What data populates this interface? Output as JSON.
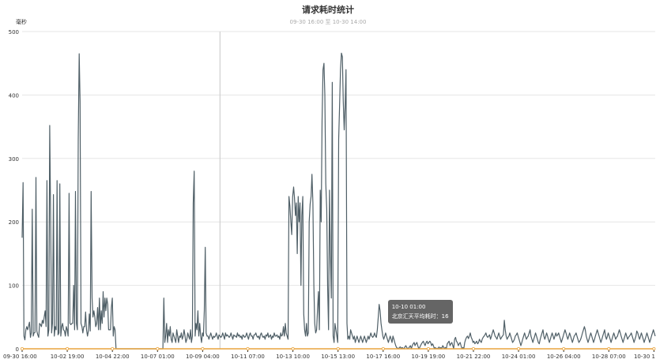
{
  "chart_data": {
    "type": "line",
    "title": "请求耗时统计",
    "subtitle": "09-30 16:00 至 10-30 14:00",
    "ylabel": "毫秒",
    "ylim": [
      0,
      500
    ],
    "y_ticks": [
      "0",
      "100",
      "200",
      "300",
      "400",
      "500"
    ],
    "x_ticks": [
      "09-30 16:00",
      "10-02 19:00",
      "10-04 22:00",
      "10-07 01:00",
      "10-09 04:00",
      "10-11 07:00",
      "10-13 10:00",
      "10-15 13:00",
      "10-17 16:00",
      "10-19 19:00",
      "10-21 22:00",
      "10-24 01:00",
      "10-26 04:00",
      "10-28 07:00",
      "10-30 1"
    ],
    "grid": true,
    "colors": {
      "series": "#4f5f67",
      "baseline": "#e8a33d",
      "grid": "#e6e6e6",
      "axis": "#333333"
    },
    "series": [
      {
        "name": "北京汇天平均耗时",
        "x_range": [
          "09-30 16:00",
          "10-30 14:00"
        ],
        "values": [
          175,
          262,
          20,
          14,
          30,
          35,
          30,
          36,
          42,
          18,
          25,
          220,
          20,
          25,
          26,
          270,
          28,
          22,
          18,
          40,
          38,
          35,
          45,
          40,
          50,
          60,
          35,
          265,
          20,
          30,
          352,
          200,
          25,
          40,
          243,
          20,
          35,
          30,
          265,
          22,
          25,
          260,
          20,
          35,
          40,
          30,
          28,
          20,
          35,
          30,
          20,
          245,
          40,
          38,
          40,
          40,
          100,
          30,
          248,
          40,
          30,
          330,
          465,
          390,
          40,
          35,
          25,
          35,
          35,
          58,
          30,
          20,
          28,
          55,
          28,
          248,
          80,
          50,
          60,
          50,
          35,
          40,
          65,
          30,
          80,
          30,
          60,
          40,
          90,
          50,
          80,
          60,
          80,
          70,
          30,
          30,
          30,
          65,
          80,
          20,
          35,
          30,
          0,
          0,
          0,
          0,
          0,
          0,
          0,
          0,
          0,
          0,
          0,
          0,
          0,
          0,
          0,
          0,
          0,
          0,
          0,
          0,
          0,
          0,
          0,
          0,
          0,
          0,
          0,
          0,
          0,
          0,
          0,
          0,
          0,
          0,
          0,
          0,
          0,
          0,
          0,
          0,
          0,
          0,
          0,
          0,
          0,
          0,
          0,
          0,
          0,
          0,
          0,
          0,
          80,
          10,
          20,
          40,
          10,
          30,
          20,
          35,
          15,
          10,
          25,
          20,
          15,
          10,
          30,
          20,
          10,
          20,
          18,
          25,
          15,
          20,
          30,
          20,
          10,
          15,
          25,
          20,
          15,
          30,
          10,
          20,
          230,
          280,
          20,
          40,
          30,
          60,
          20,
          40,
          20,
          10,
          25,
          20,
          60,
          160,
          25,
          20,
          20,
          15,
          20,
          25,
          20,
          15,
          20,
          18,
          20,
          25,
          20,
          15,
          22,
          20,
          18,
          20,
          25,
          20,
          15,
          25,
          20,
          22,
          20,
          18,
          20,
          25,
          20,
          15,
          22,
          20,
          20,
          18,
          25,
          20,
          22,
          18,
          20,
          15,
          22,
          20,
          18,
          20,
          25,
          20,
          15,
          22,
          25,
          20,
          20,
          15,
          22,
          22,
          25,
          20,
          18,
          20,
          15,
          22,
          25,
          20,
          18,
          20,
          15,
          22,
          20,
          25,
          18,
          20,
          22,
          15,
          20,
          18,
          25,
          20,
          20,
          22,
          18,
          20,
          15,
          25,
          20,
          22,
          35,
          20,
          40,
          25,
          20,
          15,
          240,
          225,
          200,
          180,
          240,
          255,
          238,
          210,
          230,
          150,
          240,
          200,
          230,
          100,
          210,
          240,
          55,
          30,
          20,
          40,
          20,
          25,
          200,
          228,
          240,
          275,
          230,
          100,
          40,
          25,
          30,
          60,
          90,
          30,
          250,
          200,
          360,
          440,
          450,
          400,
          260,
          220,
          100,
          30,
          250,
          150,
          80,
          420,
          20,
          10,
          40,
          30,
          20,
          10,
          330,
          385,
          440,
          466,
          460,
          390,
          345,
          380,
          440,
          40,
          15,
          20,
          15,
          30,
          25,
          20,
          15,
          20,
          10,
          15,
          20,
          15,
          10,
          15,
          20,
          15,
          10,
          15,
          20,
          15,
          10,
          15,
          20,
          15,
          20,
          25,
          20,
          18,
          20,
          25,
          20,
          18,
          30,
          50,
          70,
          60,
          40,
          30,
          20,
          15,
          20,
          25,
          20,
          15,
          10,
          15,
          20,
          15,
          10,
          20,
          15,
          10,
          5,
          2,
          1,
          0,
          2,
          3,
          0,
          2,
          1,
          0,
          3,
          5,
          2,
          0,
          1,
          3,
          5,
          0,
          5,
          8,
          10,
          5,
          8,
          10,
          5,
          0,
          2,
          5,
          8,
          10,
          12,
          8,
          5,
          10,
          12,
          8,
          10,
          12,
          10,
          5,
          8,
          5,
          0,
          2,
          0,
          1,
          0,
          3,
          0,
          2,
          0,
          5,
          3,
          0,
          2,
          0,
          8,
          10,
          12,
          5,
          8,
          10,
          5,
          0,
          15,
          18,
          12,
          10,
          5,
          8,
          10,
          5,
          0,
          2,
          0,
          10,
          15,
          18,
          20,
          16,
          20,
          25,
          18,
          15,
          10,
          12,
          8,
          10,
          12,
          8,
          10,
          15,
          12,
          10,
          15,
          18,
          20,
          22,
          25,
          20,
          18,
          20,
          22,
          15,
          20,
          25,
          30,
          25,
          20,
          18,
          15,
          20,
          25,
          20,
          15,
          18,
          20,
          22,
          45,
          30,
          20,
          15,
          18,
          20,
          25,
          20,
          15,
          10,
          12,
          15,
          20,
          22,
          25,
          20,
          15,
          10,
          5,
          10,
          15,
          20,
          25,
          20,
          15,
          18,
          20,
          25,
          30,
          20,
          15,
          10,
          15,
          20,
          25,
          20,
          15,
          10,
          8,
          15,
          20,
          25,
          30,
          20,
          15,
          20,
          25,
          20,
          15,
          10,
          15,
          20,
          25,
          20,
          15,
          20,
          25,
          20,
          22,
          25,
          20,
          15,
          10,
          15,
          20,
          25,
          30,
          25,
          20,
          15,
          20,
          25,
          20,
          15,
          10,
          15,
          20,
          22,
          25,
          20,
          15,
          10,
          12,
          15,
          20,
          25,
          30,
          35,
          30,
          20,
          15,
          10,
          15,
          20,
          25,
          20,
          15,
          10,
          15,
          20,
          25,
          30,
          25,
          20,
          15,
          10,
          15,
          20,
          25,
          30,
          20,
          15,
          20,
          25,
          20,
          15,
          10,
          15,
          20,
          25,
          20,
          15,
          18,
          20,
          25,
          30,
          25,
          20,
          15,
          10,
          15,
          20,
          25,
          20,
          15,
          18,
          20,
          22,
          25,
          20,
          15,
          10,
          15,
          20,
          28,
          25,
          20,
          15,
          20,
          25,
          20,
          15,
          10,
          15,
          20,
          25,
          20,
          15,
          10,
          15,
          20,
          25,
          30,
          25,
          20
        ]
      }
    ],
    "tooltip": {
      "time": "10-10 01:00",
      "label": "北京汇天平均耗时：16"
    }
  }
}
